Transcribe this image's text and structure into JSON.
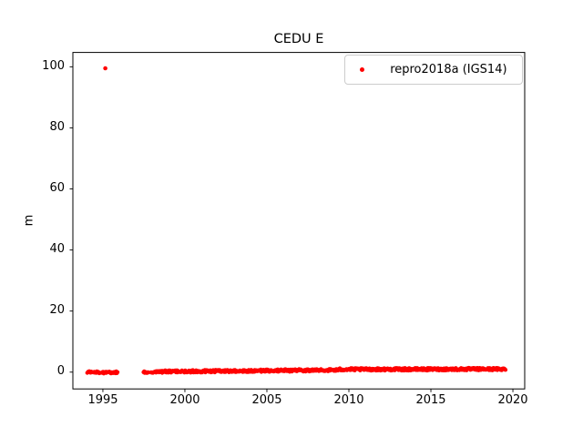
{
  "figure": {
    "background_color": "#ffffff",
    "title": "CEDU E"
  },
  "legend": {
    "label": "repro2018a (IGS14)",
    "marker_color": "#ff0000",
    "border_color": "#cccccc",
    "position": "upper right"
  },
  "chart_data": {
    "type": "scatter",
    "title": "CEDU E",
    "xlabel": "",
    "ylabel": "m",
    "grid": false,
    "legend_position": "upper right",
    "xlim": [
      1993.17,
      2020.72
    ],
    "ylim": [
      -5.5,
      104.7
    ],
    "xticks": [
      "1995",
      "2000",
      "2005",
      "2010",
      "2015",
      "2020"
    ],
    "yticks": [
      "0",
      "20",
      "40",
      "60",
      "80",
      "100"
    ],
    "series": [
      {
        "name": "repro2018a (IGS14)",
        "color": "#ff0000",
        "marker": "point",
        "marker_radius_px": 2.2,
        "outlier_points": [
          [
            1995.15,
            99.5
          ]
        ],
        "dense_segments": [
          {
            "x_start": 1994.05,
            "x_end": 1994.33,
            "y_start": 0.0,
            "y_end": 0.0,
            "jitter": 0.3
          },
          {
            "x_start": 1994.44,
            "x_end": 1994.82,
            "y_start": -0.05,
            "y_end": -0.05,
            "jitter": 0.3
          },
          {
            "x_start": 1994.94,
            "x_end": 1995.28,
            "y_start": -0.1,
            "y_end": -0.1,
            "jitter": 0.35
          },
          {
            "x_start": 1995.39,
            "x_end": 1995.89,
            "y_start": -0.1,
            "y_end": -0.1,
            "jitter": 0.35
          },
          {
            "x_start": 1997.48,
            "x_end": 1997.78,
            "y_start": 0.0,
            "y_end": 0.0,
            "jitter": 0.3
          },
          {
            "x_start": 1997.94,
            "x_end": 1998.28,
            "y_start": 0.0,
            "y_end": 0.05,
            "jitter": 0.3
          },
          {
            "x_start": 1998.35,
            "x_end": 2009.4,
            "y_start": 0.15,
            "y_end": 0.7,
            "jitter": 0.4
          },
          {
            "x_start": 2009.45,
            "x_end": 2019.55,
            "y_start": 0.9,
            "y_end": 1.0,
            "jitter": 0.4
          }
        ]
      }
    ]
  }
}
